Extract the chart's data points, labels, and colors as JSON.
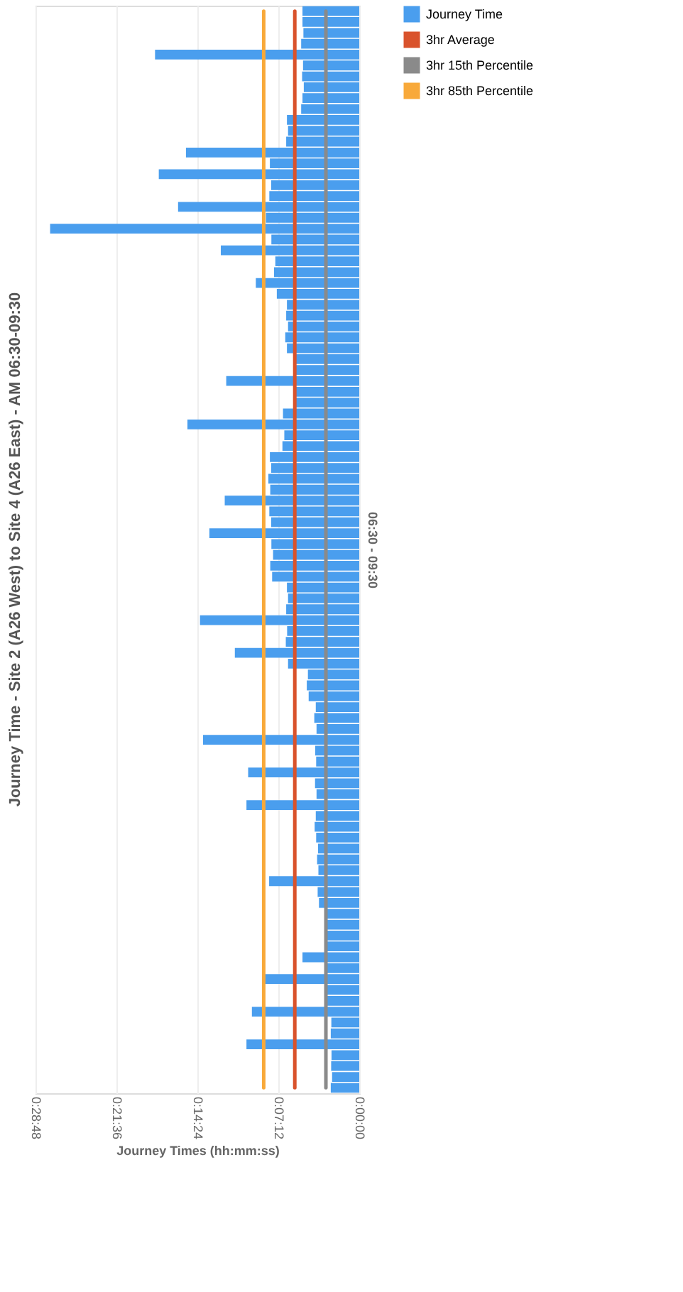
{
  "chart_data": {
    "type": "bar",
    "orientation": "horizontal",
    "title": "Journey Time - Site 2 (A26 West) to Site 4 (A26 East) - AM 06:30-09:30",
    "xlabel": "Journey Times (hh:mm:ss)",
    "ylabel": "06:30 - 09:30",
    "categories": [
      null,
      null,
      null,
      null,
      null,
      null,
      null,
      null,
      null,
      null,
      null,
      null,
      null,
      null,
      null,
      null,
      null,
      null,
      null,
      null,
      null,
      null,
      null,
      null,
      null,
      null,
      null,
      null,
      null,
      null,
      null,
      null,
      null,
      null,
      null,
      null,
      null,
      null,
      null,
      null,
      null,
      null,
      null,
      null,
      null,
      null,
      null,
      null,
      null,
      null,
      null,
      null,
      null,
      null,
      null,
      null,
      null,
      null,
      null,
      null,
      null,
      null,
      null,
      null,
      null,
      null,
      null,
      null,
      null,
      null,
      null,
      null,
      null,
      null,
      null,
      null,
      null,
      null,
      null,
      null,
      null,
      null,
      null,
      null,
      null,
      null,
      null,
      null,
      null,
      null,
      null,
      null,
      null,
      null,
      null,
      null,
      null,
      null,
      null,
      null
    ],
    "series": [
      {
        "name": "Journey Time",
        "color": "#4a9eee",
        "values": [
          303,
          303,
          298,
          310,
          1090,
          300,
          305,
          296,
          303,
          310,
          386,
          380,
          390,
          925,
          477,
          1070,
          470,
          480,
          967,
          498,
          1650,
          469,
          739,
          448,
          455,
          552,
          440,
          386,
          390,
          380,
          395,
          386,
          344,
          350,
          710,
          340,
          348,
          407,
          917,
          400,
          410,
          477,
          470,
          485,
          475,
          718,
          480,
          470,
          800,
          469,
          460,
          475,
          465,
          386,
          380,
          390,
          850,
          385,
          392,
          664,
          380,
          274,
          280,
          270,
          232,
          240,
          228,
          834,
          235,
          230,
          593,
          236,
          228,
          602,
          232,
          238,
          230,
          220,
          225,
          218,
          481,
          222,
          215,
          178,
          182,
          175,
          180,
          303,
          176,
          519,
          180,
          172,
          573,
          149,
          152,
          602,
          148,
          150,
          145,
          152
        ]
      },
      {
        "name": "3hr Average",
        "type": "line",
        "color": "#d9532c",
        "values": [
          344,
          344,
          344,
          344,
          344,
          344,
          344,
          344,
          344,
          344,
          344,
          344,
          344,
          344,
          344,
          344,
          344,
          344,
          344,
          344,
          344,
          344,
          344,
          344,
          344,
          344,
          344,
          344,
          344,
          344,
          344,
          344,
          344,
          344,
          344,
          344,
          344,
          344,
          344,
          344,
          344,
          344,
          344,
          344,
          344,
          344,
          344,
          344,
          344,
          344,
          344,
          344,
          344,
          344,
          344,
          344,
          344,
          344,
          344,
          344,
          344,
          344,
          344,
          344,
          344,
          344,
          344,
          344,
          344,
          344,
          344,
          344,
          344,
          344,
          344,
          344,
          344,
          344,
          344,
          344,
          344,
          344,
          344,
          344,
          344,
          344,
          344,
          344,
          344,
          344,
          344,
          344,
          344,
          344,
          344,
          344,
          344,
          344,
          344,
          344
        ]
      },
      {
        "name": "3hr 15th Percentile",
        "type": "line",
        "color": "#8a8a8a",
        "values": [
          178,
          178,
          178,
          178,
          178,
          178,
          178,
          178,
          178,
          178,
          178,
          178,
          178,
          178,
          178,
          178,
          178,
          178,
          178,
          178,
          178,
          178,
          178,
          178,
          178,
          178,
          178,
          178,
          178,
          178,
          178,
          178,
          178,
          178,
          178,
          178,
          178,
          178,
          178,
          178,
          178,
          178,
          178,
          178,
          178,
          178,
          178,
          178,
          178,
          178,
          178,
          178,
          178,
          178,
          178,
          178,
          178,
          178,
          178,
          178,
          178,
          178,
          178,
          178,
          178,
          178,
          178,
          178,
          178,
          178,
          178,
          178,
          178,
          178,
          178,
          178,
          178,
          178,
          178,
          178,
          178,
          178,
          178,
          178,
          178,
          178,
          178,
          178,
          178,
          178,
          178,
          178,
          178,
          178,
          178,
          178,
          178,
          178,
          178,
          178
        ]
      },
      {
        "name": "3hr 85th Percentile",
        "type": "line",
        "color": "#f8a93a",
        "values": [
          510,
          510,
          510,
          510,
          510,
          510,
          510,
          510,
          510,
          510,
          510,
          510,
          510,
          510,
          510,
          510,
          510,
          510,
          510,
          510,
          510,
          510,
          510,
          510,
          510,
          510,
          510,
          510,
          510,
          510,
          510,
          510,
          510,
          510,
          510,
          510,
          510,
          510,
          510,
          510,
          510,
          510,
          510,
          510,
          510,
          510,
          510,
          510,
          510,
          510,
          510,
          510,
          510,
          510,
          510,
          510,
          510,
          510,
          510,
          510,
          510,
          510,
          510,
          510,
          510,
          510,
          510,
          510,
          510,
          510,
          510,
          510,
          510,
          510,
          510,
          510,
          510,
          510,
          510,
          510,
          510,
          510,
          510,
          510,
          510,
          510,
          510,
          510,
          510,
          510,
          510,
          510,
          510,
          510,
          510,
          510,
          510,
          510,
          510,
          510
        ]
      }
    ],
    "xlim": [
      1728,
      0
    ],
    "xticks": [
      {
        "value": 0,
        "label": "0:00:00"
      },
      {
        "value": 432,
        "label": "0:07:12"
      },
      {
        "value": 864,
        "label": "0:14:24"
      },
      {
        "value": 1296,
        "label": "0:21:36"
      },
      {
        "value": 1728,
        "label": "0:28:48"
      }
    ],
    "grid": "x",
    "legend": "right",
    "tick_labels": "x"
  }
}
